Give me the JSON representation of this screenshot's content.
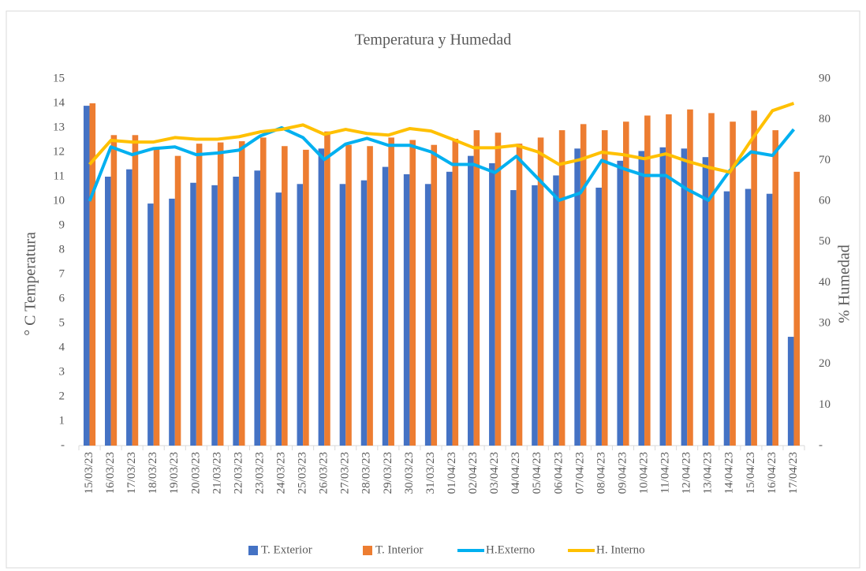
{
  "chart_data": {
    "type": "bar_line",
    "title": "Temperatura y Humedad",
    "y_label": "° C  Temperatura",
    "y2_label": "%  Humedad",
    "categories": [
      "15/03/23",
      "16/03/23",
      "17/03/23",
      "18/03/23",
      "19/03/23",
      "20/03/23",
      "21/03/23",
      "22/03/23",
      "23/03/23",
      "24/03/23",
      "25/03/23",
      "26/03/23",
      "27/03/23",
      "28/03/23",
      "29/03/23",
      "30/03/23",
      "31/03/23",
      "01/04/23",
      "02/04/23",
      "03/04/23",
      "04/04/23",
      "05/04/23",
      "06/04/23",
      "07/04/23",
      "08/04/23",
      "09/04/23",
      "10/04/23",
      "11/04/23",
      "12/04/23",
      "13/04/23",
      "14/04/23",
      "15/04/23",
      "16/04/23",
      "17/04/23"
    ],
    "series": [
      {
        "name": "T. Exterior",
        "type": "bar",
        "color": "#4472c4",
        "values": [
          13.9,
          11.0,
          11.3,
          9.9,
          10.1,
          10.75,
          10.65,
          11.0,
          11.25,
          10.35,
          10.7,
          12.15,
          10.7,
          10.85,
          11.4,
          11.1,
          10.7,
          11.2,
          11.85,
          11.55,
          10.45,
          10.65,
          11.05,
          12.15,
          10.55,
          11.65,
          12.05,
          12.2,
          12.15,
          11.8,
          10.4,
          10.5,
          10.3,
          4.45
        ]
      },
      {
        "name": "T. Interior",
        "type": "bar",
        "color": "#ed7d31",
        "values": [
          14.0,
          12.7,
          12.7,
          12.2,
          11.85,
          12.35,
          12.4,
          12.45,
          12.6,
          12.25,
          12.1,
          12.85,
          12.3,
          12.25,
          12.6,
          12.5,
          12.3,
          12.55,
          12.9,
          12.8,
          12.35,
          12.6,
          12.9,
          13.15,
          12.9,
          13.25,
          13.5,
          13.55,
          13.75,
          13.6,
          13.25,
          13.7,
          12.9,
          11.2
        ]
      },
      {
        "name": "H.Externo",
        "type": "line",
        "axis": "y2",
        "color": "#00b0f0",
        "values": [
          60,
          73.3,
          71.4,
          72.9,
          73.3,
          71.4,
          71.8,
          72.5,
          76,
          78,
          75.6,
          70.2,
          74,
          75.4,
          73.7,
          73.7,
          72.1,
          69,
          69,
          67,
          71,
          65.6,
          60.2,
          62,
          70,
          68,
          66.3,
          66.3,
          62.9,
          60.2,
          67.5,
          72.1,
          71.2,
          77.6
        ]
      },
      {
        "name": "H. Interno",
        "type": "line",
        "axis": "y2",
        "color": "#ffc000",
        "values": [
          69,
          74.9,
          74.5,
          74.5,
          75.6,
          75.2,
          75.2,
          75.8,
          77,
          77.6,
          78.7,
          76.4,
          77.6,
          76.6,
          76.2,
          77.8,
          77.2,
          75.2,
          73.1,
          73.1,
          73.7,
          72.1,
          69,
          70.2,
          72,
          71.4,
          70.4,
          71.6,
          69.8,
          68.3,
          67.1,
          74.9,
          82.2,
          84
        ]
      }
    ],
    "ylim": [
      0,
      15
    ],
    "yticks": [
      {
        "value": 0,
        "label": "-"
      },
      1,
      2,
      3,
      4,
      5,
      6,
      7,
      8,
      9,
      10,
      11,
      12,
      13,
      14,
      15
    ],
    "y2lim": [
      0,
      90
    ],
    "y2ticks": [
      {
        "value": 0,
        "label": "-"
      },
      10,
      20,
      30,
      40,
      50,
      60,
      70,
      80,
      90
    ],
    "legend": "bottom"
  }
}
